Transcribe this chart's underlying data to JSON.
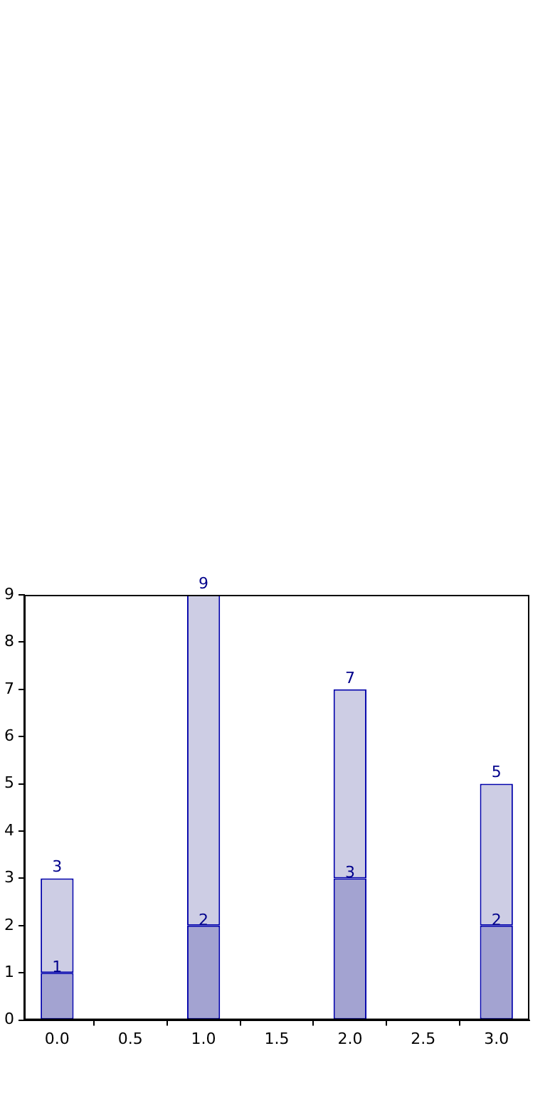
{
  "chart_data": {
    "type": "bar",
    "x": [
      0,
      1,
      2,
      3
    ],
    "stacked": true,
    "series": [
      {
        "color": "#a3a3d1",
        "values": [
          1,
          2,
          3,
          2
        ],
        "value_labels": [
          "1",
          "2",
          "3",
          "2"
        ]
      },
      {
        "color": "#cdcde4",
        "values": [
          2,
          7,
          4,
          3
        ]
      }
    ],
    "totals": [
      "3",
      "9",
      "7",
      "5"
    ],
    "xlim": [
      -0.225,
      3.225
    ],
    "xticks": [
      {
        "value": 0,
        "label": "0.0"
      },
      {
        "value": 0.5,
        "label": "0.5"
      },
      {
        "value": 1,
        "label": "1.0"
      },
      {
        "value": 1.5,
        "label": "1.5"
      },
      {
        "value": 2,
        "label": "2.0"
      },
      {
        "value": 2.5,
        "label": "2.5"
      },
      {
        "value": 3,
        "label": "3.0"
      }
    ],
    "ylim": [
      0,
      9
    ],
    "yticks": [
      0,
      1,
      2,
      3,
      4,
      5,
      6,
      7,
      8,
      9
    ],
    "grid": false,
    "legend": false
  }
}
